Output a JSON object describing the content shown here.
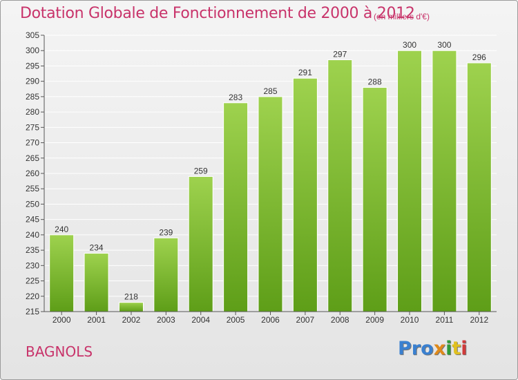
{
  "title": "Dotation Globale de Fonctionnement de 2000 à 2012",
  "subtitle": "(en milliers d'€)",
  "commune": "BAGNOLS",
  "brand": {
    "text": "Proxiti",
    "letters": [
      {
        "ch": "P",
        "color": "#3a80d0"
      },
      {
        "ch": "r",
        "color": "#3a80d0"
      },
      {
        "ch": "o",
        "color": "#3a80d0"
      },
      {
        "ch": "x",
        "color": "#e08a1a"
      },
      {
        "ch": "i",
        "color": "#2f9a3a"
      },
      {
        "ch": "t",
        "color": "#e0c020"
      },
      {
        "ch": "i",
        "color": "#d03a3a"
      }
    ]
  },
  "colors": {
    "title": "#c8336a",
    "bar_top": "#9ed24e",
    "bar_bottom": "#5e9e18",
    "grid": "#ffffff",
    "text": "#333333"
  },
  "chart_data": {
    "type": "bar",
    "title": "Dotation Globale de Fonctionnement de 2000 à 2012",
    "subtitle": "(en milliers d'€)",
    "categories": [
      "2000",
      "2001",
      "2002",
      "2003",
      "2004",
      "2005",
      "2006",
      "2007",
      "2008",
      "2009",
      "2010",
      "2011",
      "2012"
    ],
    "values": [
      240,
      234,
      218,
      239,
      259,
      283,
      285,
      291,
      297,
      288,
      300,
      300,
      296
    ],
    "ylim": [
      215,
      305
    ],
    "ytick_step": 5,
    "grid": true,
    "legend": "none"
  }
}
